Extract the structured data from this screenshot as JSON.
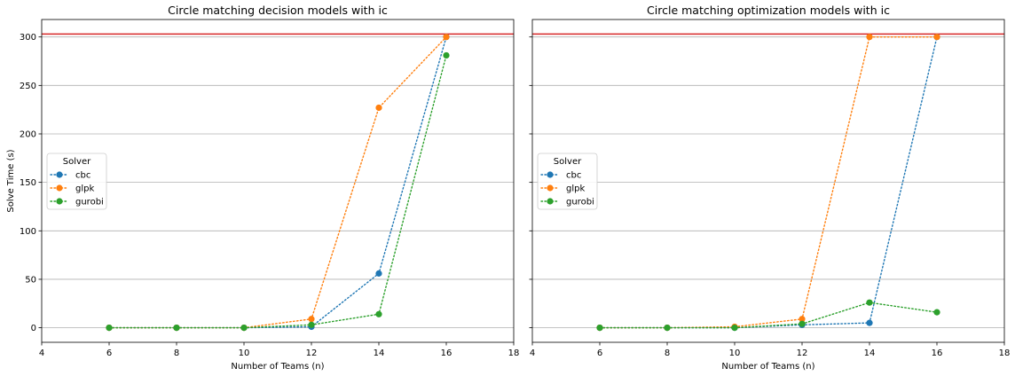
{
  "chart_data": [
    {
      "type": "line",
      "title": "Circle matching decision models with ic",
      "xlabel": "Number of Teams (n)",
      "ylabel": "Solve Time (s)",
      "xlim": [
        4,
        18
      ],
      "ylim": [
        -15,
        318
      ],
      "xticks": [
        4,
        6,
        8,
        10,
        12,
        14,
        16,
        18
      ],
      "yticks": [
        0,
        50,
        100,
        150,
        200,
        250,
        300
      ],
      "grid": "horizontal",
      "reference_line": {
        "y": 303,
        "color": "#d62728"
      },
      "legend": {
        "title": "Solver",
        "position": "center-left"
      },
      "x": [
        6,
        8,
        10,
        12,
        14,
        16
      ],
      "series": [
        {
          "name": "cbc",
          "color": "#1f77b4",
          "values": [
            0,
            0,
            0,
            1,
            56,
            300
          ]
        },
        {
          "name": "glpk",
          "color": "#ff7f0e",
          "values": [
            0,
            0,
            0,
            9,
            227,
            300
          ]
        },
        {
          "name": "gurobi",
          "color": "#2ca02c",
          "values": [
            0,
            0,
            0,
            3,
            14,
            281
          ]
        }
      ]
    },
    {
      "type": "line",
      "title": "Circle matching  optimization models with ic",
      "xlabel": "Number of Teams (n)",
      "ylabel": "",
      "xlim": [
        4,
        18
      ],
      "ylim": [
        -15,
        318
      ],
      "xticks": [
        4,
        6,
        8,
        10,
        12,
        14,
        16,
        18
      ],
      "yticks": [
        0,
        50,
        100,
        150,
        200,
        250,
        300
      ],
      "grid": "horizontal",
      "reference_line": {
        "y": 303,
        "color": "#d62728"
      },
      "legend": {
        "title": "Solver",
        "position": "center-left"
      },
      "x": [
        6,
        8,
        10,
        12,
        14,
        16
      ],
      "series": [
        {
          "name": "cbc",
          "color": "#1f77b4",
          "values": [
            0,
            0,
            0,
            3,
            5,
            300
          ]
        },
        {
          "name": "glpk",
          "color": "#ff7f0e",
          "values": [
            0,
            0,
            1,
            9,
            300,
            300
          ]
        },
        {
          "name": "gurobi",
          "color": "#2ca02c",
          "values": [
            0,
            0,
            0,
            4,
            26,
            16
          ]
        }
      ]
    }
  ]
}
